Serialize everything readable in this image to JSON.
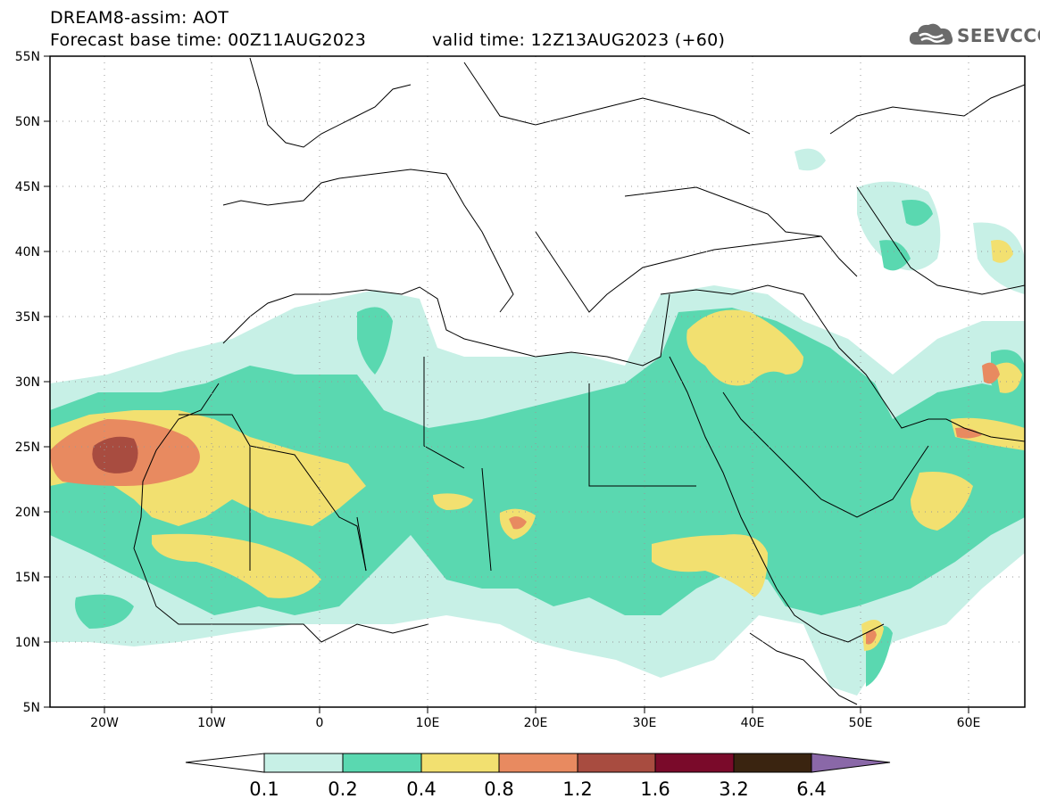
{
  "header": {
    "line1": "DREAM8-assim: AOT",
    "line2": "Forecast base time: 00Z11AUG2023",
    "line3": "valid time: 12Z13AUG2023 (+60)"
  },
  "logo": {
    "text": "SEEVCCC",
    "icon": "cloud-icon"
  },
  "map_data": {
    "type": "contour-map",
    "variable": "AOT",
    "lon_range": [
      -25,
      65
    ],
    "lat_range": [
      5,
      55
    ],
    "lon_ticks": [
      "20W",
      "10W",
      "0",
      "10E",
      "20E",
      "30E",
      "40E",
      "50E",
      "60E"
    ],
    "lat_ticks": [
      "55N",
      "50N",
      "45N",
      "40N",
      "35N",
      "30N",
      "25N",
      "20N",
      "15N",
      "10N",
      "5N"
    ]
  },
  "colorbar": {
    "labels": [
      "0.1",
      "0.2",
      "0.4",
      "0.8",
      "1.2",
      "1.6",
      "3.2",
      "6.4"
    ],
    "colors": [
      "#c7f0e6",
      "#5ad8b0",
      "#f2e070",
      "#e88a60",
      "#a84c40",
      "#7a0a2a",
      "#3a2410",
      "#8a68a8"
    ]
  }
}
